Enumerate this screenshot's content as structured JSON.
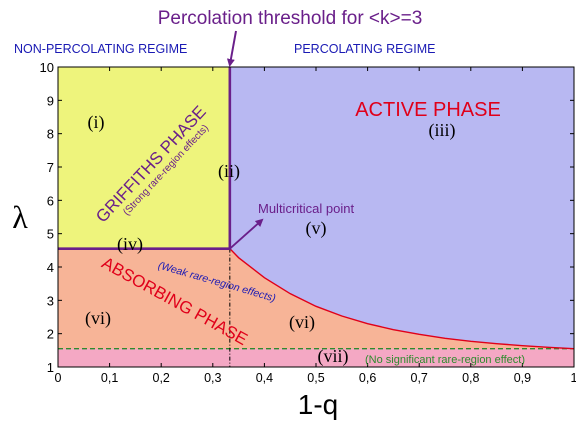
{
  "chart_data": {
    "type": "area",
    "title": "Percolation threshold for <k>=3",
    "xlabel": "1-q",
    "ylabel": "λ",
    "xlim": [
      0,
      1
    ],
    "ylim": [
      1,
      10
    ],
    "xticks": [
      "0",
      "0,1",
      "0,2",
      "0,3",
      "0,4",
      "0,5",
      "0,6",
      "0,7",
      "0,8",
      "0,9",
      "1"
    ],
    "yticks": [
      "1",
      "2",
      "3",
      "4",
      "5",
      "6",
      "7",
      "8",
      "9",
      "10"
    ],
    "percolation_threshold_x": 0.333,
    "griffiths_boundary_lambda": 4.55,
    "no_rare_region_lambda": 1.55,
    "phase_boundary": {
      "x": [
        0.333,
        0.35,
        0.4,
        0.45,
        0.5,
        0.55,
        0.6,
        0.65,
        0.7,
        0.75,
        0.8,
        0.85,
        0.9,
        0.95,
        1.0
      ],
      "y": [
        4.55,
        4.28,
        3.68,
        3.2,
        2.82,
        2.53,
        2.3,
        2.12,
        1.98,
        1.86,
        1.77,
        1.7,
        1.64,
        1.59,
        1.55
      ]
    },
    "regime_labels": {
      "left": "NON-PERCOLATING REGIME",
      "right": "PERCOLATING REGIME"
    },
    "phases": {
      "griffiths": "GRIFFITHS PHASE",
      "griffiths_note": "(Strong rare-region effects)",
      "active": "ACTIVE PHASE",
      "absorbing": "ABSORBING PHASE",
      "weak_note": "(Weak rare-region effects)",
      "none_note": "(No significant rare-region effect)",
      "multicritical": "Multicritical point"
    },
    "region_numbers": [
      "(i)",
      "(ii)",
      "(iii)",
      "(iv)",
      "(v)",
      "(vi)",
      "(vi)",
      "(vii)"
    ],
    "colors": {
      "griffiths": "#eef47c",
      "active": "#b8b8f2",
      "absorbing": "#f7b497",
      "no_effect": "#f4a8c4",
      "boundary_purple": "#6a1f8a",
      "phase_line": "#e0001a",
      "dashed_green": "#2e8b2e",
      "regime_text": "#1a1ab4",
      "weak_note": "#1a1ab4"
    }
  }
}
